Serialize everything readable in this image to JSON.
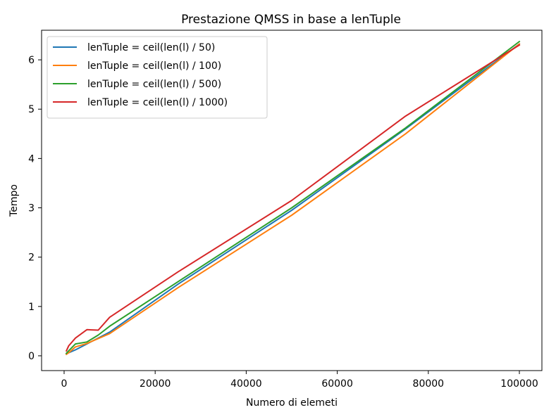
{
  "chart_data": {
    "type": "line",
    "title": "Prestazione QMSS in base a lenTuple",
    "xlabel": "Numero di elemeti",
    "ylabel": "Tempo",
    "xlim": [
      -4950,
      104950
    ],
    "ylim": [
      -0.3,
      6.6
    ],
    "xticks": [
      0,
      20000,
      40000,
      60000,
      80000,
      100000
    ],
    "xtick_labels": [
      "0",
      "20000",
      "40000",
      "60000",
      "80000",
      "100000"
    ],
    "yticks": [
      0,
      1,
      2,
      3,
      4,
      5,
      6
    ],
    "ytick_labels": [
      "0",
      "1",
      "2",
      "3",
      "4",
      "5",
      "6"
    ],
    "grid": false,
    "legend_position": "top-left",
    "series": [
      {
        "name": "lenTuple = ceil(len(l) / 50)",
        "color": "#1f77b4",
        "x": [
          500,
          1000,
          2500,
          5000,
          7500,
          10000,
          25000,
          50000,
          75000,
          100000
        ],
        "y": [
          0.04,
          0.06,
          0.12,
          0.24,
          0.36,
          0.48,
          1.45,
          2.95,
          4.6,
          6.32
        ]
      },
      {
        "name": "lenTuple = ceil(len(l) / 100)",
        "color": "#ff7f0e",
        "x": [
          500,
          1000,
          2500,
          5000,
          7500,
          10000,
          25000,
          50000,
          75000,
          100000
        ],
        "y": [
          0.03,
          0.06,
          0.18,
          0.25,
          0.35,
          0.45,
          1.38,
          2.85,
          4.5,
          6.32
        ]
      },
      {
        "name": "lenTuple = ceil(len(l) / 500)",
        "color": "#2ca02c",
        "x": [
          500,
          1000,
          2500,
          5000,
          7500,
          10000,
          25000,
          50000,
          75000,
          100000
        ],
        "y": [
          0.05,
          0.1,
          0.24,
          0.28,
          0.42,
          0.6,
          1.5,
          3.0,
          4.62,
          6.37
        ]
      },
      {
        "name": "lenTuple = ceil(len(l) / 1000)",
        "color": "#d62728",
        "x": [
          500,
          1000,
          2500,
          5000,
          7500,
          10000,
          25000,
          50000,
          75000,
          100000
        ],
        "y": [
          0.1,
          0.2,
          0.36,
          0.53,
          0.52,
          0.78,
          1.7,
          3.15,
          4.86,
          6.3
        ]
      }
    ]
  }
}
